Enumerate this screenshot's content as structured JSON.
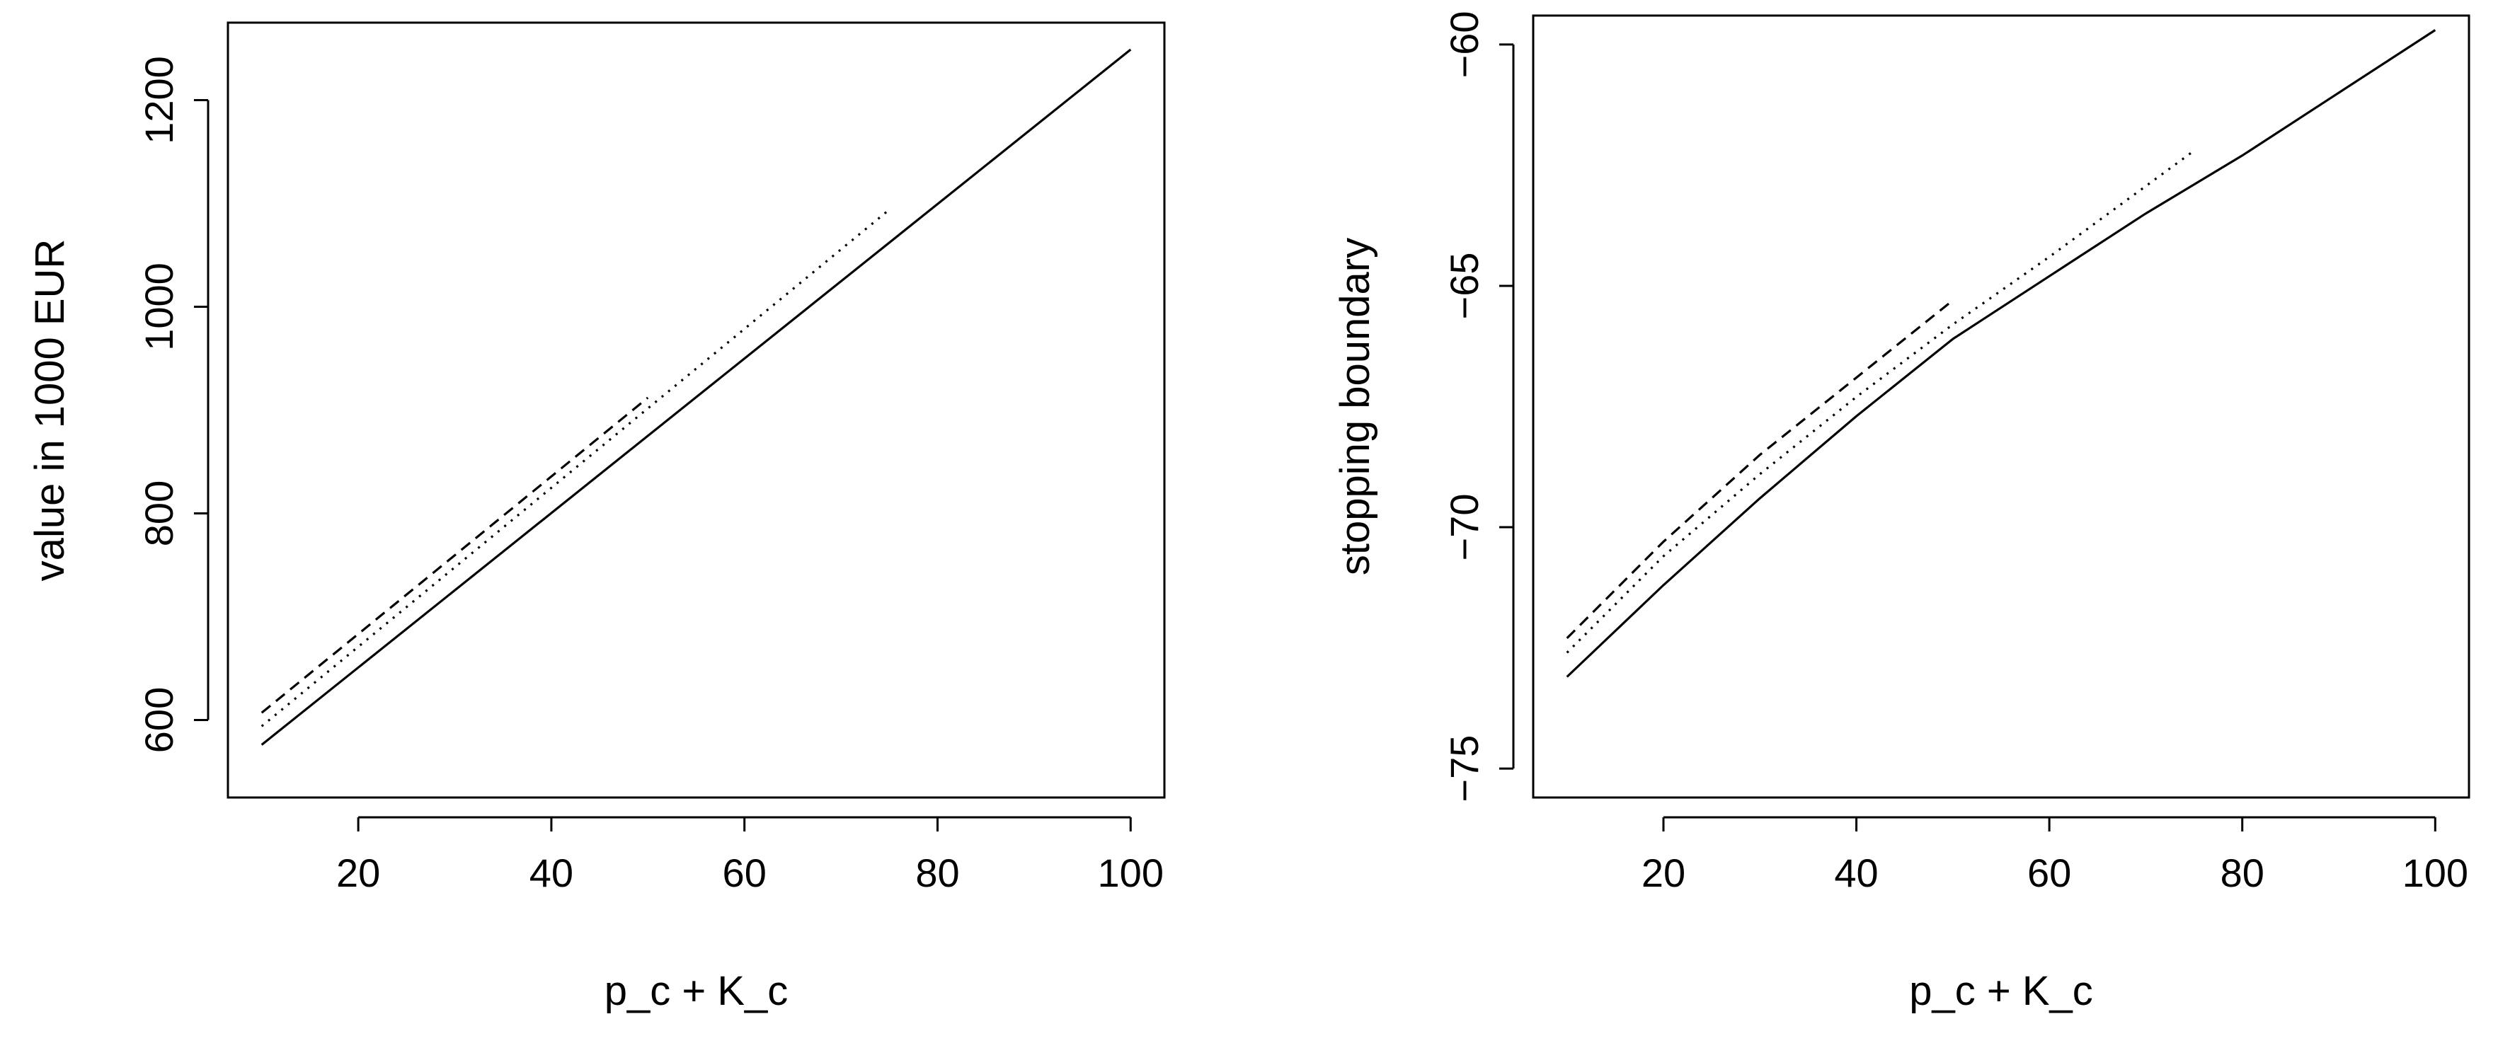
{
  "chart_data": [
    {
      "type": "line",
      "title": "",
      "xlabel": "p_c + K_c",
      "ylabel": "value in 1000 EUR",
      "xlim": [
        6.5,
        103.5
      ],
      "ylim": [
        525,
        1275
      ],
      "x_ticks": [
        20,
        40,
        60,
        80,
        100
      ],
      "y_ticks": [
        600,
        800,
        1000,
        1200
      ],
      "grid": false,
      "legend": "none",
      "series": [
        {
          "style": "solid",
          "x": [
            10,
            100
          ],
          "y": [
            576,
            1249
          ]
        },
        {
          "style": "dotted",
          "x": [
            10,
            75
          ],
          "y": [
            594,
            1094
          ]
        },
        {
          "style": "dashed",
          "x": [
            10,
            50
          ],
          "y": [
            607,
            912
          ]
        }
      ]
    },
    {
      "type": "line",
      "title": "",
      "xlabel": "p_c + K_c",
      "ylabel": "stopping boundary",
      "xlim": [
        6.5,
        103.5
      ],
      "ylim": [
        -75.6,
        -59.4
      ],
      "x_ticks": [
        20,
        40,
        60,
        80,
        100
      ],
      "y_ticks": [
        -75,
        -70,
        -65,
        -60
      ],
      "grid": false,
      "legend": "none",
      "series": [
        {
          "style": "solid",
          "x": [
            10,
            20,
            30,
            40,
            50,
            60,
            70,
            80,
            90,
            100
          ],
          "y": [
            -73.1,
            -71.2,
            -69.4,
            -67.7,
            -66.1,
            -64.8,
            -63.5,
            -62.3,
            -61.0,
            -59.7
          ]
        },
        {
          "style": "dotted",
          "x": [
            10,
            20,
            30,
            40,
            50,
            60,
            75
          ],
          "y": [
            -72.6,
            -70.6,
            -68.9,
            -67.3,
            -65.8,
            -64.4,
            -62.2
          ]
        },
        {
          "style": "dashed",
          "x": [
            10,
            20,
            30,
            40,
            50
          ],
          "y": [
            -72.3,
            -70.3,
            -68.5,
            -66.9,
            -65.3
          ]
        }
      ]
    }
  ]
}
